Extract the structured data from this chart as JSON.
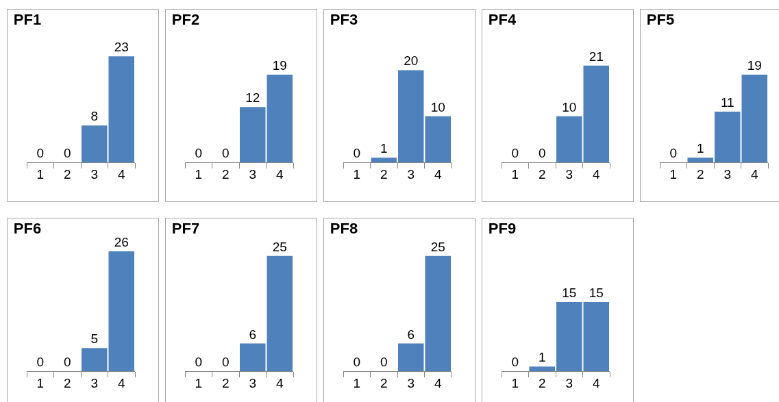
{
  "chart_data": [
    {
      "type": "bar",
      "title": "PF1",
      "categories": [
        "1",
        "2",
        "3",
        "4"
      ],
      "values": [
        0,
        0,
        8,
        23
      ],
      "color": "#4f81bd",
      "data_labels": true,
      "grid": false,
      "legend": false
    },
    {
      "type": "bar",
      "title": "PF2",
      "categories": [
        "1",
        "2",
        "3",
        "4"
      ],
      "values": [
        0,
        0,
        12,
        19
      ],
      "color": "#4f81bd",
      "data_labels": true,
      "grid": false,
      "legend": false
    },
    {
      "type": "bar",
      "title": "PF3",
      "categories": [
        "1",
        "2",
        "3",
        "4"
      ],
      "values": [
        0,
        1,
        20,
        10
      ],
      "color": "#4f81bd",
      "data_labels": true,
      "grid": false,
      "legend": false
    },
    {
      "type": "bar",
      "title": "PF4",
      "categories": [
        "1",
        "2",
        "3",
        "4"
      ],
      "values": [
        0,
        0,
        10,
        21
      ],
      "color": "#4f81bd",
      "data_labels": true,
      "grid": false,
      "legend": false
    },
    {
      "type": "bar",
      "title": "PF5",
      "categories": [
        "1",
        "2",
        "3",
        "4"
      ],
      "values": [
        0,
        1,
        11,
        19
      ],
      "color": "#4f81bd",
      "data_labels": true,
      "grid": false,
      "legend": false
    },
    {
      "type": "bar",
      "title": "PF6",
      "categories": [
        "1",
        "2",
        "3",
        "4"
      ],
      "values": [
        0,
        0,
        5,
        26
      ],
      "color": "#4f81bd",
      "data_labels": true,
      "grid": false,
      "legend": false
    },
    {
      "type": "bar",
      "title": "PF7",
      "categories": [
        "1",
        "2",
        "3",
        "4"
      ],
      "values": [
        0,
        0,
        6,
        25
      ],
      "color": "#4f81bd",
      "data_labels": true,
      "grid": false,
      "legend": false
    },
    {
      "type": "bar",
      "title": "PF8",
      "categories": [
        "1",
        "2",
        "3",
        "4"
      ],
      "values": [
        0,
        0,
        6,
        25
      ],
      "color": "#4f81bd",
      "data_labels": true,
      "grid": false,
      "legend": false
    },
    {
      "type": "bar",
      "title": "PF9",
      "categories": [
        "1",
        "2",
        "3",
        "4"
      ],
      "values": [
        0,
        1,
        15,
        15
      ],
      "color": "#4f81bd",
      "data_labels": true,
      "grid": false,
      "legend": false
    }
  ]
}
